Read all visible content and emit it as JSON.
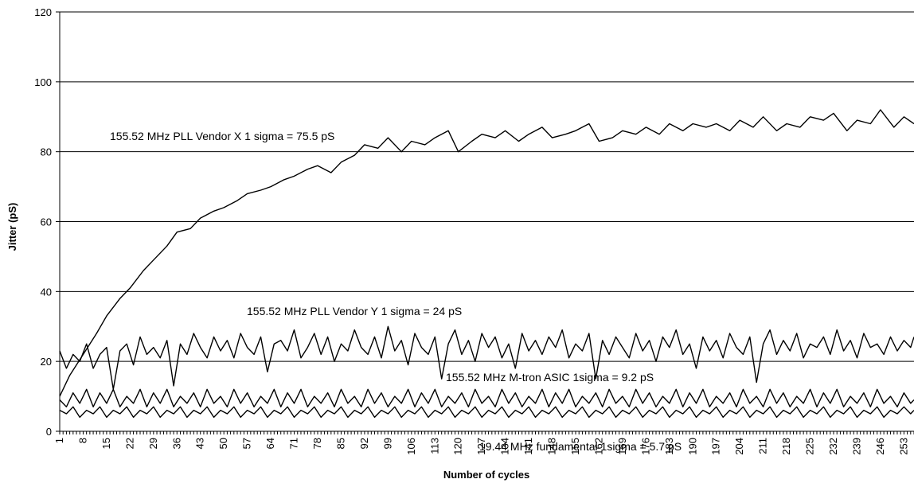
{
  "chart_data": {
    "type": "line",
    "title": "",
    "xlabel": "Number of cycles",
    "ylabel": "Jitter (pS)",
    "xlim": [
      1,
      256
    ],
    "ylim": [
      0,
      120
    ],
    "y_ticks": [
      0,
      20,
      40,
      60,
      80,
      100,
      120
    ],
    "x_ticks": [
      "1",
      "8",
      "15",
      "22",
      "29",
      "36",
      "43",
      "50",
      "57",
      "64",
      "71",
      "78",
      "85",
      "92",
      "99",
      "106",
      "113",
      "120",
      "127",
      "134",
      "141",
      "148",
      "155",
      "162",
      "169",
      "176",
      "183",
      "190",
      "197",
      "204",
      "211",
      "218",
      "225",
      "232",
      "239",
      "246",
      "253"
    ],
    "grid": "horizontal",
    "legend": "none",
    "annotations": [
      {
        "text": "155.52 MHz PLL Vendor X 1 sigma = 75.5 pS",
        "series": 0
      },
      {
        "text": "155.52 MHz PLL Vendor Y 1 sigma = 24 pS",
        "series": 1
      },
      {
        "text": "155.52 MHz M-tron ASIC 1sigma = 9.2 pS",
        "series": 2
      },
      {
        "text": "19.44 MHz fundamental 1sigma = 5.7 pS",
        "series": 3
      }
    ],
    "series": [
      {
        "x": [
          1,
          4,
          8,
          12,
          15,
          19,
          22,
          26,
          29,
          33,
          36,
          40,
          43,
          47,
          50,
          54,
          57,
          61,
          64,
          68,
          71,
          75,
          78,
          82,
          85,
          89,
          92,
          96,
          99,
          103,
          106,
          110,
          113,
          117,
          120,
          124,
          127,
          131,
          134,
          138,
          141,
          145,
          148,
          152,
          155,
          159,
          162,
          166,
          169,
          173,
          176,
          180,
          183,
          187,
          190,
          194,
          197,
          201,
          204,
          208,
          211,
          215,
          218,
          222,
          225,
          229,
          232,
          236,
          239,
          243,
          246,
          250,
          253,
          256
        ],
        "y": [
          10,
          16,
          22,
          28,
          33,
          38,
          41,
          46,
          49,
          53,
          57,
          58,
          61,
          63,
          64,
          66,
          68,
          69,
          70,
          72,
          73,
          75,
          76,
          74,
          77,
          79,
          82,
          81,
          84,
          80,
          83,
          82,
          84,
          86,
          80,
          83,
          85,
          84,
          86,
          83,
          85,
          87,
          84,
          85,
          86,
          88,
          83,
          84,
          86,
          85,
          87,
          85,
          88,
          86,
          88,
          87,
          88,
          86,
          89,
          87,
          90,
          86,
          88,
          87,
          90,
          89,
          91,
          86,
          89,
          88,
          92,
          87,
          90,
          88
        ]
      },
      {
        "x": [
          1,
          3,
          5,
          7,
          9,
          11,
          13,
          15,
          17,
          19,
          21,
          23,
          25,
          27,
          29,
          31,
          33,
          35,
          37,
          39,
          41,
          43,
          45,
          47,
          49,
          51,
          53,
          55,
          57,
          59,
          61,
          63,
          65,
          67,
          69,
          71,
          73,
          75,
          77,
          79,
          81,
          83,
          85,
          87,
          89,
          91,
          93,
          95,
          97,
          99,
          101,
          103,
          105,
          107,
          109,
          111,
          113,
          115,
          117,
          119,
          121,
          123,
          125,
          127,
          129,
          131,
          133,
          135,
          137,
          139,
          141,
          143,
          145,
          147,
          149,
          151,
          153,
          155,
          157,
          159,
          161,
          163,
          165,
          167,
          169,
          171,
          173,
          175,
          177,
          179,
          181,
          183,
          185,
          187,
          189,
          191,
          193,
          195,
          197,
          199,
          201,
          203,
          205,
          207,
          209,
          211,
          213,
          215,
          217,
          219,
          221,
          223,
          225,
          227,
          229,
          231,
          233,
          235,
          237,
          239,
          241,
          243,
          245,
          247,
          249,
          251,
          253,
          255,
          256
        ],
        "y": [
          23,
          18,
          22,
          20,
          25,
          18,
          22,
          24,
          12,
          23,
          25,
          19,
          27,
          22,
          24,
          21,
          26,
          13,
          25,
          22,
          28,
          24,
          21,
          27,
          23,
          26,
          21,
          28,
          24,
          22,
          27,
          17,
          25,
          26,
          23,
          29,
          21,
          24,
          28,
          22,
          27,
          20,
          25,
          23,
          29,
          24,
          22,
          27,
          21,
          30,
          23,
          26,
          19,
          28,
          24,
          22,
          27,
          15,
          25,
          29,
          22,
          26,
          20,
          28,
          24,
          27,
          21,
          25,
          18,
          28,
          23,
          26,
          22,
          27,
          24,
          29,
          21,
          25,
          23,
          28,
          15,
          26,
          22,
          27,
          24,
          21,
          28,
          23,
          26,
          20,
          27,
          24,
          29,
          22,
          25,
          18,
          27,
          23,
          26,
          21,
          28,
          24,
          22,
          27,
          14,
          25,
          29,
          22,
          26,
          23,
          28,
          21,
          25,
          24,
          27,
          22,
          29,
          23,
          26,
          21,
          28,
          24,
          25,
          22,
          27,
          23,
          26,
          24,
          27
        ]
      },
      {
        "x": [
          1,
          3,
          5,
          7,
          9,
          11,
          13,
          15,
          17,
          19,
          21,
          23,
          25,
          27,
          29,
          31,
          33,
          35,
          37,
          39,
          41,
          43,
          45,
          47,
          49,
          51,
          53,
          55,
          57,
          59,
          61,
          63,
          65,
          67,
          69,
          71,
          73,
          75,
          77,
          79,
          81,
          83,
          85,
          87,
          89,
          91,
          93,
          95,
          97,
          99,
          101,
          103,
          105,
          107,
          109,
          111,
          113,
          115,
          117,
          119,
          121,
          123,
          125,
          127,
          129,
          131,
          133,
          135,
          137,
          139,
          141,
          143,
          145,
          147,
          149,
          151,
          153,
          155,
          157,
          159,
          161,
          163,
          165,
          167,
          169,
          171,
          173,
          175,
          177,
          179,
          181,
          183,
          185,
          187,
          189,
          191,
          193,
          195,
          197,
          199,
          201,
          203,
          205,
          207,
          209,
          211,
          213,
          215,
          217,
          219,
          221,
          223,
          225,
          227,
          229,
          231,
          233,
          235,
          237,
          239,
          241,
          243,
          245,
          247,
          249,
          251,
          253,
          255,
          256
        ],
        "y": [
          9,
          7,
          11,
          8,
          12,
          7,
          11,
          8,
          12,
          7,
          10,
          8,
          12,
          7,
          11,
          8,
          12,
          7,
          10,
          8,
          11,
          7,
          12,
          8,
          10,
          7,
          12,
          8,
          11,
          7,
          10,
          8,
          12,
          7,
          11,
          8,
          12,
          7,
          10,
          8,
          11,
          7,
          12,
          8,
          10,
          7,
          12,
          8,
          11,
          7,
          10,
          8,
          12,
          7,
          11,
          8,
          12,
          7,
          10,
          8,
          11,
          7,
          12,
          8,
          10,
          7,
          12,
          8,
          11,
          7,
          10,
          8,
          12,
          7,
          11,
          8,
          12,
          7,
          10,
          8,
          11,
          7,
          12,
          8,
          10,
          7,
          12,
          8,
          11,
          7,
          10,
          8,
          12,
          7,
          11,
          8,
          12,
          7,
          10,
          8,
          11,
          7,
          12,
          8,
          10,
          7,
          12,
          8,
          11,
          7,
          10,
          8,
          12,
          7,
          11,
          8,
          12,
          7,
          10,
          8,
          11,
          7,
          12,
          8,
          10,
          7,
          11,
          8,
          9
        ]
      },
      {
        "x": [
          1,
          3,
          5,
          7,
          9,
          11,
          13,
          15,
          17,
          19,
          21,
          23,
          25,
          27,
          29,
          31,
          33,
          35,
          37,
          39,
          41,
          43,
          45,
          47,
          49,
          51,
          53,
          55,
          57,
          59,
          61,
          63,
          65,
          67,
          69,
          71,
          73,
          75,
          77,
          79,
          81,
          83,
          85,
          87,
          89,
          91,
          93,
          95,
          97,
          99,
          101,
          103,
          105,
          107,
          109,
          111,
          113,
          115,
          117,
          119,
          121,
          123,
          125,
          127,
          129,
          131,
          133,
          135,
          137,
          139,
          141,
          143,
          145,
          147,
          149,
          151,
          153,
          155,
          157,
          159,
          161,
          163,
          165,
          167,
          169,
          171,
          173,
          175,
          177,
          179,
          181,
          183,
          185,
          187,
          189,
          191,
          193,
          195,
          197,
          199,
          201,
          203,
          205,
          207,
          209,
          211,
          213,
          215,
          217,
          219,
          221,
          223,
          225,
          227,
          229,
          231,
          233,
          235,
          237,
          239,
          241,
          243,
          245,
          247,
          249,
          251,
          253,
          255,
          256
        ],
        "y": [
          6,
          5,
          7,
          4,
          6,
          5,
          7,
          4,
          6,
          5,
          7,
          4,
          6,
          5,
          7,
          4,
          6,
          5,
          7,
          4,
          6,
          5,
          7,
          4,
          6,
          5,
          7,
          4,
          6,
          5,
          7,
          4,
          6,
          5,
          7,
          4,
          6,
          5,
          7,
          4,
          6,
          5,
          7,
          4,
          6,
          5,
          7,
          4,
          6,
          5,
          7,
          4,
          6,
          5,
          7,
          4,
          6,
          5,
          7,
          4,
          6,
          5,
          7,
          4,
          6,
          5,
          7,
          4,
          6,
          5,
          7,
          4,
          6,
          5,
          7,
          4,
          6,
          5,
          7,
          4,
          6,
          5,
          7,
          4,
          6,
          5,
          7,
          4,
          6,
          5,
          7,
          4,
          6,
          5,
          7,
          4,
          6,
          5,
          7,
          4,
          6,
          5,
          7,
          4,
          6,
          5,
          7,
          4,
          6,
          5,
          7,
          4,
          6,
          5,
          7,
          4,
          6,
          5,
          7,
          4,
          6,
          5,
          7,
          4,
          6,
          5,
          7,
          5,
          6
        ]
      }
    ]
  }
}
